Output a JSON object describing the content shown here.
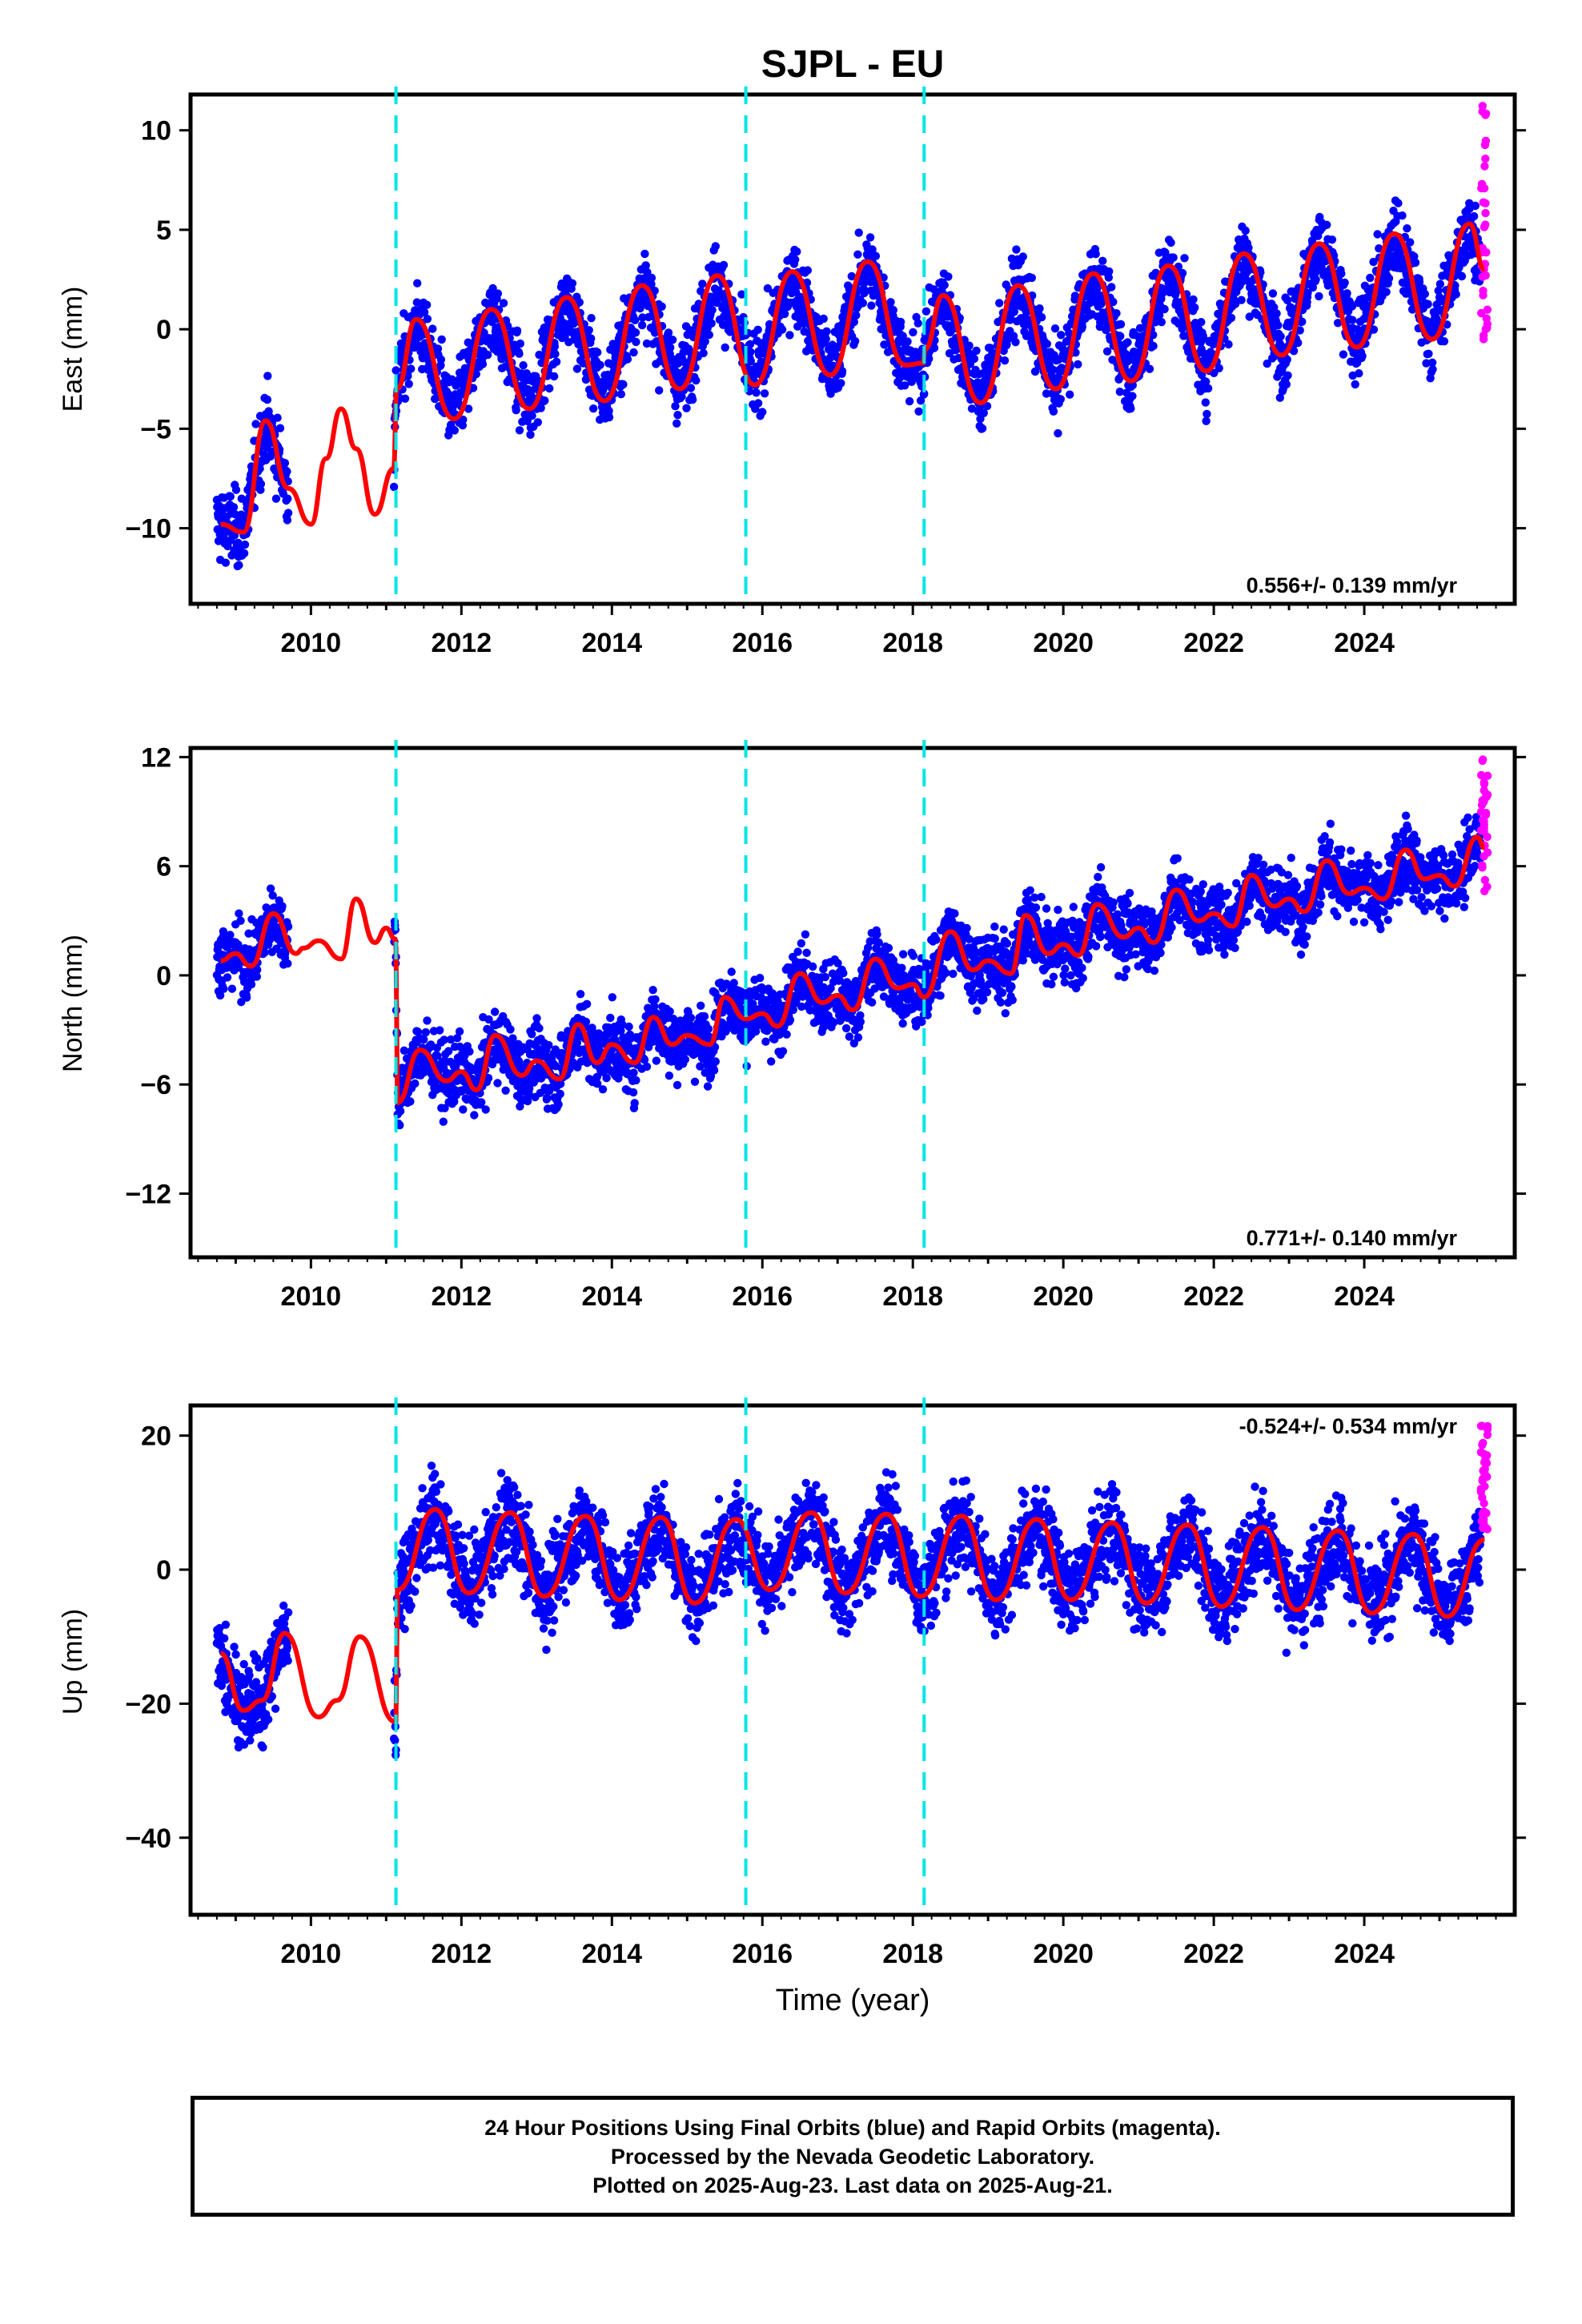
{
  "title": "SJPL - EU",
  "xlabel": "Time (year)",
  "colors": {
    "final_orbits": "#0000ff",
    "rapid_orbits": "#ff00ff",
    "model": "#ff0000",
    "steps": "#00e5e5"
  },
  "footer": {
    "line1": "24 Hour Positions Using Final Orbits (blue) and Rapid Orbits (magenta).",
    "line2": "Processed by the Nevada Geodetic Laboratory.",
    "line3": "Plotted on 2025-Aug-23. Last data on 2025-Aug-21."
  },
  "chart_data": [
    {
      "type": "scatter",
      "ylabel": "East (mm)",
      "rate": "0.556+/- 0.139 mm/yr",
      "xlim": [
        2008.4,
        2026.0
      ],
      "ylim": [
        -13.8,
        11.8
      ],
      "xticks": [
        2010,
        2012,
        2014,
        2016,
        2018,
        2020,
        2022,
        2024
      ],
      "yticks": [
        -10,
        -5,
        0,
        5,
        10
      ],
      "steps": [
        2011.13,
        2015.78,
        2018.15
      ],
      "data_start": 2008.75,
      "data_gap": [
        2009.7,
        2011.1
      ],
      "data_end": 2025.64,
      "rapid_start": 2025.55,
      "rapid_range": [
        -1.0,
        11.3
      ],
      "series": [
        {
          "name": "Final Orbits",
          "note": "daily positions",
          "scatter": 1.3
        },
        {
          "name": "Rapid Orbits"
        },
        {
          "name": "Model",
          "x": [
            2008.8,
            2009.1,
            2009.4,
            2009.7,
            2010.0,
            2010.2,
            2010.4,
            2010.6,
            2010.85,
            2011.1,
            2011.14,
            2011.4,
            2011.9,
            2012.4,
            2012.9,
            2013.4,
            2013.9,
            2014.4,
            2014.9,
            2015.4,
            2015.9,
            2016.4,
            2016.9,
            2017.4,
            2017.9,
            2018.14,
            2018.16,
            2018.4,
            2018.9,
            2019.4,
            2019.9,
            2020.4,
            2020.9,
            2021.4,
            2021.9,
            2022.4,
            2022.9,
            2023.4,
            2023.9,
            2024.4,
            2024.9,
            2025.4,
            2025.6
          ],
          "y": [
            -9.8,
            -10.2,
            -4.6,
            -8.0,
            -9.8,
            -6.5,
            -4.0,
            -6.0,
            -9.3,
            -7.0,
            -3.0,
            0.5,
            -4.5,
            1.0,
            -4.0,
            1.6,
            -3.6,
            2.2,
            -3.0,
            2.7,
            -2.8,
            2.9,
            -2.3,
            3.4,
            -1.8,
            -1.7,
            -1.0,
            1.7,
            -3.7,
            2.2,
            -3.0,
            2.8,
            -2.6,
            3.2,
            -2.1,
            3.8,
            -1.3,
            4.3,
            -0.9,
            4.8,
            -0.5,
            5.3,
            3.0
          ]
        }
      ]
    },
    {
      "type": "scatter",
      "ylabel": "North (mm)",
      "rate": "0.771+/- 0.140 mm/yr",
      "xlim": [
        2008.4,
        2026.0
      ],
      "ylim": [
        -15.5,
        12.5
      ],
      "xticks": [
        2010,
        2012,
        2014,
        2016,
        2018,
        2020,
        2022,
        2024
      ],
      "yticks": [
        -12,
        -6,
        0,
        6,
        12
      ],
      "steps": [
        2011.13,
        2015.78,
        2018.15
      ],
      "data_start": 2008.75,
      "data_gap": [
        2009.7,
        2011.1
      ],
      "data_end": 2025.64,
      "rapid_start": 2025.55,
      "rapid_range": [
        4.3,
        12.0
      ],
      "series": [
        {
          "name": "Final Orbits",
          "note": "daily positions",
          "scatter": 1.3
        },
        {
          "name": "Rapid Orbits"
        },
        {
          "name": "Model",
          "x": [
            2008.8,
            2009.0,
            2009.2,
            2009.5,
            2009.8,
            2009.9,
            2010.1,
            2010.4,
            2010.6,
            2010.85,
            2011.0,
            2011.12,
            2011.13,
            2011.15,
            2011.45,
            2011.8,
            2012.0,
            2012.2,
            2012.45,
            2012.8,
            2013.0,
            2013.3,
            2013.55,
            2013.8,
            2014.0,
            2014.3,
            2014.55,
            2014.8,
            2015.0,
            2015.3,
            2015.5,
            2015.78,
            2016.0,
            2016.2,
            2016.5,
            2016.8,
            2017.0,
            2017.2,
            2017.5,
            2017.8,
            2018.0,
            2018.15,
            2018.5,
            2018.8,
            2019.0,
            2019.3,
            2019.5,
            2019.8,
            2020.0,
            2020.2,
            2020.45,
            2020.8,
            2021.0,
            2021.2,
            2021.5,
            2021.8,
            2022.0,
            2022.25,
            2022.5,
            2022.8,
            2023.0,
            2023.2,
            2023.5,
            2023.8,
            2024.0,
            2024.25,
            2024.55,
            2024.8,
            2025.0,
            2025.2,
            2025.5,
            2025.6
          ],
          "y": [
            0.8,
            1.2,
            0.5,
            3.4,
            1.2,
            1.5,
            1.9,
            0.9,
            4.2,
            1.8,
            2.6,
            2.0,
            1.5,
            -7.0,
            -4.1,
            -5.8,
            -5.3,
            -6.3,
            -3.3,
            -5.5,
            -4.7,
            -5.7,
            -2.7,
            -4.8,
            -3.8,
            -4.8,
            -2.3,
            -3.8,
            -3.3,
            -3.8,
            -1.2,
            -2.4,
            -2.1,
            -2.8,
            0.1,
            -1.5,
            -1.1,
            -1.9,
            0.9,
            -0.7,
            -0.5,
            -1.2,
            2.4,
            0.3,
            0.8,
            0.1,
            3.3,
            1.2,
            1.7,
            1.1,
            3.9,
            2.1,
            2.6,
            1.8,
            4.7,
            3.0,
            3.4,
            2.7,
            5.5,
            3.8,
            4.2,
            3.5,
            6.3,
            4.5,
            4.8,
            4.2,
            6.9,
            5.3,
            5.5,
            4.9,
            7.6,
            7.0
          ]
        }
      ]
    },
    {
      "type": "scatter",
      "ylabel": "Up (mm)",
      "rate": "-0.524+/- 0.534 mm/yr",
      "xlim": [
        2008.4,
        2026.0
      ],
      "ylim": [
        -51.5,
        24.5
      ],
      "xticks": [
        2010,
        2012,
        2014,
        2016,
        2018,
        2020,
        2022,
        2024
      ],
      "yticks": [
        -40,
        -20,
        0,
        20
      ],
      "steps": [
        2011.13,
        2015.78,
        2018.15
      ],
      "data_start": 2008.75,
      "data_gap": [
        2009.7,
        2011.1
      ],
      "data_end": 2025.64,
      "rapid_start": 2025.55,
      "rapid_range": [
        6.0,
        23.0
      ],
      "series": [
        {
          "name": "Final Orbits",
          "note": "daily positions",
          "scatter": 4.5
        },
        {
          "name": "Rapid Orbits"
        },
        {
          "name": "Model",
          "x": [
            2008.8,
            2009.1,
            2009.35,
            2009.65,
            2010.1,
            2010.35,
            2010.65,
            2011.12,
            2011.13,
            2011.15,
            2011.65,
            2012.1,
            2012.65,
            2013.1,
            2013.65,
            2014.1,
            2014.65,
            2015.1,
            2015.65,
            2016.1,
            2016.65,
            2017.1,
            2017.65,
            2018.1,
            2018.65,
            2019.1,
            2019.65,
            2020.1,
            2020.65,
            2021.1,
            2021.65,
            2022.1,
            2022.65,
            2023.1,
            2023.65,
            2024.1,
            2024.65,
            2025.1,
            2025.6
          ],
          "y": [
            -12.5,
            -21.0,
            -19.5,
            -9.5,
            -22.0,
            -19.5,
            -10.0,
            -22.7,
            -22.7,
            -3.0,
            9.0,
            -3.5,
            8.5,
            -4.0,
            8.0,
            -4.5,
            7.8,
            -5.0,
            7.5,
            -3.0,
            8.5,
            -3.5,
            8.3,
            -4.0,
            8.0,
            -4.5,
            7.5,
            -4.5,
            7.0,
            -5.0,
            6.7,
            -5.5,
            6.3,
            -6.0,
            5.8,
            -6.5,
            5.3,
            -7.0,
            4.5
          ]
        }
      ]
    }
  ]
}
